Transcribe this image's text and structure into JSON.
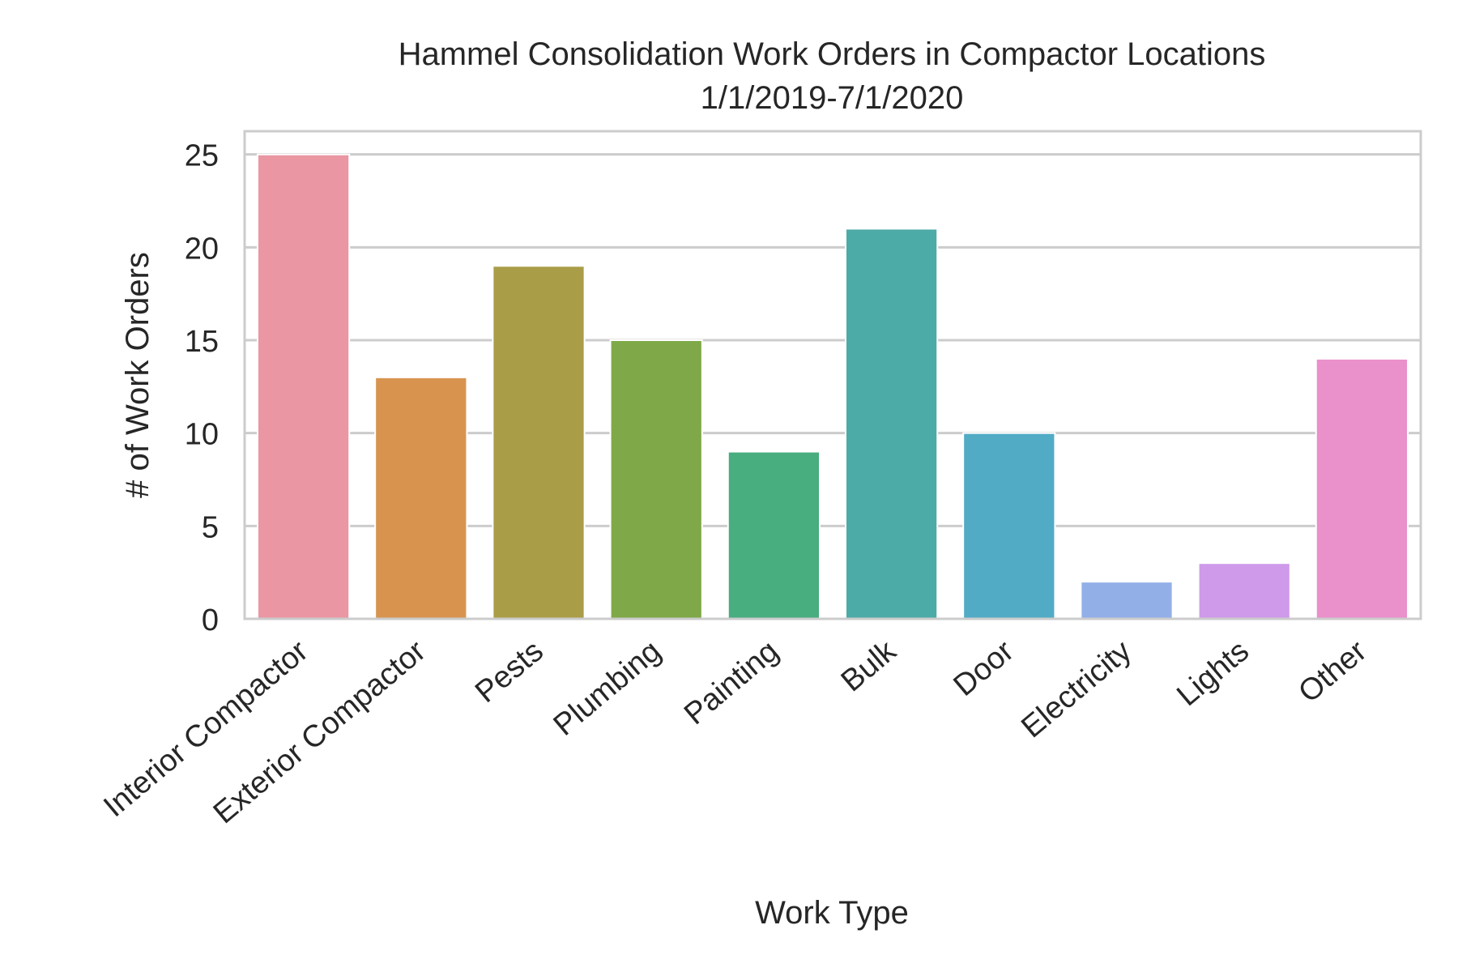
{
  "chart_data": {
    "type": "bar",
    "title": "Hammel Consolidation Work Orders in Compactor Locations",
    "subtitle": "1/1/2019-7/1/2020",
    "xlabel": "Work Type",
    "ylabel": "# of Work Orders",
    "categories": [
      "Interior Compactor",
      "Exterior Compactor",
      "Pests",
      "Plumbing",
      "Painting",
      "Bulk",
      "Door",
      "Electricity",
      "Lights",
      "Other"
    ],
    "values": [
      25,
      13,
      19,
      15,
      9,
      21,
      10,
      2,
      3,
      14
    ],
    "colors": [
      "#ea96a3",
      "#d8944f",
      "#aa9d48",
      "#7fa948",
      "#48ad7f",
      "#4caba7",
      "#52abc5",
      "#93afe8",
      "#cf9aea",
      "#ea90cb"
    ],
    "ylim": [
      0,
      26.25
    ],
    "yticks": [
      0,
      5,
      10,
      15,
      20,
      25
    ],
    "grid": true,
    "legend": "none"
  }
}
